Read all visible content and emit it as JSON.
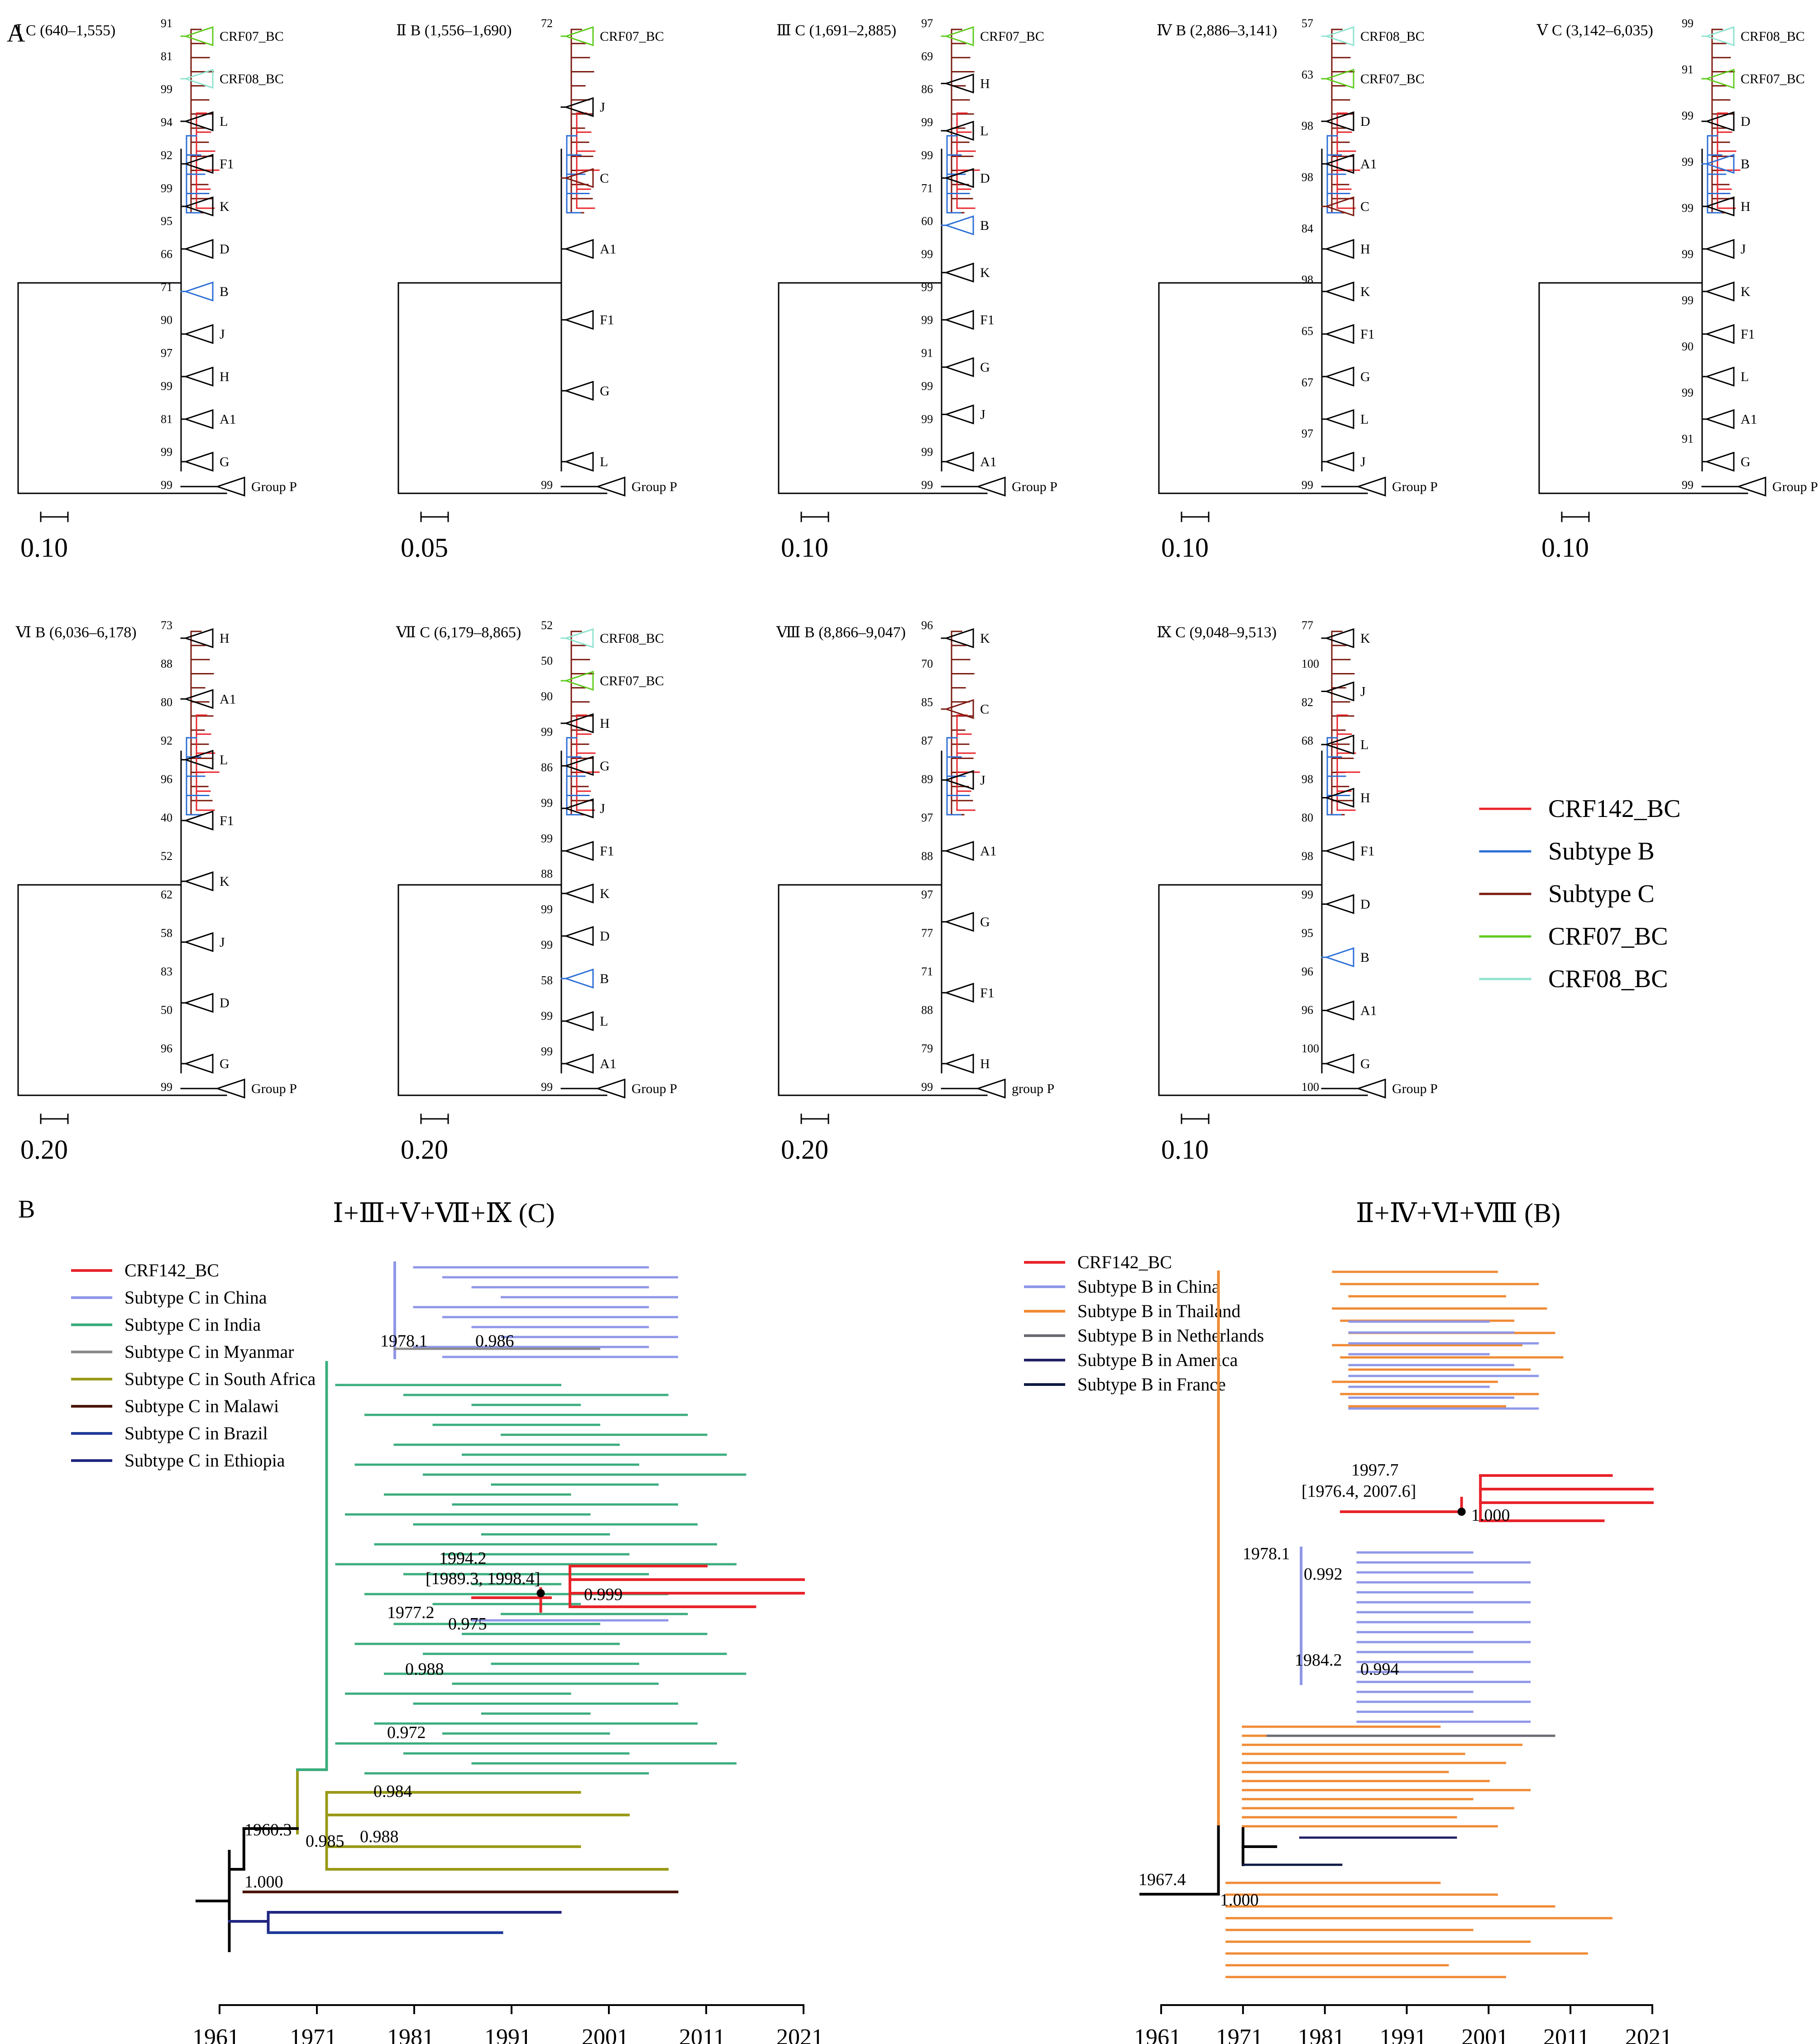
{
  "panel_letters": {
    "a": "A",
    "b": "B"
  },
  "colors": {
    "crf142": "#e8232a",
    "subtype_b": "#2c6fd6",
    "subtype_c": "#7a1a10",
    "crf07": "#5fcb1f",
    "crf08": "#8fe3cf",
    "c_china": "#8f97e8",
    "c_india": "#3bad7e",
    "c_myanmar": "#8a8a8a",
    "c_southafrica": "#9a9a18",
    "c_malawi": "#4a1608",
    "c_brazil": "#1e3a9a",
    "c_ethiopia": "#202580",
    "b_thailand": "#f08a34",
    "b_netherlands": "#6a6a72",
    "b_america": "#222266",
    "b_france": "#0e1a44"
  },
  "panelA": {
    "legend": [
      "CRF142_BC",
      "Subtype B",
      "Subtype C",
      "CRF07_BC",
      "CRF08_BC"
    ],
    "subtrees": [
      {
        "title": "Ⅰ C (640–1,555)",
        "scale": "0.10",
        "clades": [
          "CRF07_BC",
          "CRF08_BC",
          "L",
          "F1",
          "K",
          "D",
          "B",
          "J",
          "H",
          "A1",
          "G",
          "Group P"
        ],
        "bootstrap": [
          "91",
          "81",
          "99",
          "94",
          "92",
          "99",
          "95",
          "66",
          "71",
          "90",
          "97",
          "99",
          "81",
          "99",
          "99"
        ]
      },
      {
        "title": "Ⅱ B (1,556–1,690)",
        "scale": "0.05",
        "clades": [
          "CRF07_BC",
          "J",
          "C",
          "A1",
          "F1",
          "G",
          "L",
          "Group P"
        ],
        "bootstrap": [
          "72",
          "99"
        ]
      },
      {
        "title": "Ⅲ C (1,691–2,885)",
        "scale": "0.10",
        "clades": [
          "CRF07_BC",
          "H",
          "L",
          "D",
          "B",
          "K",
          "F1",
          "G",
          "J",
          "A1",
          "Group P"
        ],
        "bootstrap": [
          "97",
          "69",
          "86",
          "99",
          "99",
          "71",
          "60",
          "99",
          "99",
          "99",
          "91",
          "99",
          "99",
          "99",
          "99"
        ]
      },
      {
        "title": "Ⅳ B (2,886–3,141)",
        "scale": "0.10",
        "clades": [
          "CRF08_BC",
          "CRF07_BC",
          "D",
          "A1",
          "C",
          "H",
          "K",
          "F1",
          "G",
          "L",
          "J",
          "Group P"
        ],
        "bootstrap": [
          "57",
          "63",
          "98",
          "98",
          "84",
          "98",
          "65",
          "67",
          "97",
          "99"
        ]
      },
      {
        "title": "Ⅴ C (3,142–6,035)",
        "scale": "0.10",
        "clades": [
          "CRF08_BC",
          "CRF07_BC",
          "D",
          "B",
          "H",
          "J",
          "K",
          "F1",
          "L",
          "A1",
          "G",
          "Group P"
        ],
        "bootstrap": [
          "99",
          "91",
          "99",
          "99",
          "99",
          "99",
          "99",
          "90",
          "99",
          "91",
          "99"
        ]
      },
      {
        "title": "Ⅵ B (6,036–6,178)",
        "scale": "0.20",
        "clades": [
          "H",
          "A1",
          "L",
          "F1",
          "K",
          "J",
          "D",
          "G",
          "Group P"
        ],
        "bootstrap": [
          "73",
          "88",
          "80",
          "92",
          "96",
          "40",
          "52",
          "62",
          "58",
          "83",
          "50",
          "96",
          "99"
        ]
      },
      {
        "title": "Ⅶ C (6,179–8,865)",
        "scale": "0.20",
        "clades": [
          "CRF08_BC",
          "CRF07_BC",
          "H",
          "G",
          "J",
          "F1",
          "K",
          "D",
          "B",
          "L",
          "A1",
          "Group P"
        ],
        "bootstrap": [
          "52",
          "50",
          "90",
          "99",
          "86",
          "99",
          "99",
          "88",
          "99",
          "99",
          "58",
          "99",
          "99",
          "99"
        ]
      },
      {
        "title": "Ⅷ B (8,866–9,047)",
        "scale": "0.20",
        "clades": [
          "K",
          "C",
          "J",
          "A1",
          "G",
          "F1",
          "H",
          "group P"
        ],
        "bootstrap": [
          "96",
          "70",
          "85",
          "87",
          "89",
          "97",
          "88",
          "97",
          "77",
          "71",
          "88",
          "79",
          "99"
        ]
      },
      {
        "title": "Ⅸ C (9,048–9,513)",
        "scale": "0.10",
        "clades": [
          "K",
          "J",
          "L",
          "H",
          "F1",
          "D",
          "B",
          "A1",
          "G",
          "Group P"
        ],
        "bootstrap": [
          "77",
          "100",
          "82",
          "68",
          "98",
          "80",
          "98",
          "99",
          "95",
          "96",
          "96",
          "100",
          "100"
        ]
      }
    ]
  },
  "panelB": {
    "left": {
      "title": "Ⅰ+Ⅲ+Ⅴ+Ⅶ+Ⅸ (C)",
      "legend": [
        "CRF142_BC",
        "Subtype C in China",
        "Subtype C in India",
        "Subtype C in Myanmar",
        "Subtype C in South Africa",
        "Subtype C in Malawi",
        "Subtype C in Brazil",
        "Subtype C in Ethiopia"
      ],
      "node_labels": [
        "1978.1",
        "0.986",
        "1994.2",
        "[1989.3, 1998.4]",
        "0.999",
        "1977.2",
        "0.975",
        "0.988",
        "0.972",
        "0.984",
        "0.988",
        "1960.3",
        "0.985",
        "1.000"
      ],
      "axis": [
        "1961",
        "1971",
        "1981",
        "1991",
        "2001",
        "2011",
        "2021"
      ]
    },
    "right": {
      "title": "Ⅱ+Ⅳ+Ⅵ+Ⅷ (B)",
      "legend": [
        "CRF142_BC",
        "Subtype B in China",
        "Subtype B in Thailand",
        "Subtype B in Netherlands",
        "Subtype B in America",
        "Subtype B in France"
      ],
      "node_labels": [
        "1997.7",
        "[1976.4, 2007.6]",
        "1.000",
        "1978.1",
        "0.992",
        "1984.2",
        "0.994",
        "1967.4",
        "1.000"
      ],
      "axis": [
        "1961",
        "1971",
        "1981",
        "1991",
        "2001",
        "2011",
        "2021"
      ]
    }
  }
}
